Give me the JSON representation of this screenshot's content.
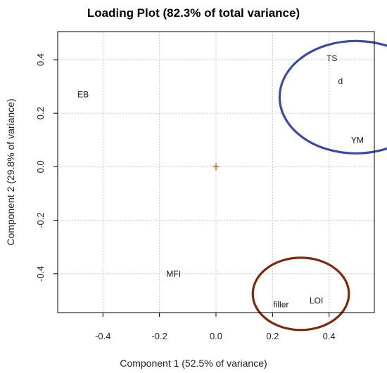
{
  "chart_data": {
    "type": "scatter",
    "title": "Loading Plot (82.3% of total variance)",
    "xlabel": "Component 1 (52.5% of variance)",
    "ylabel": "Component 2 (29.8% of variance)",
    "xlim": [
      -0.56,
      0.56
    ],
    "ylim": [
      -0.545,
      0.505
    ],
    "xticks": [
      -0.4,
      -0.2,
      0.0,
      0.2,
      0.4
    ],
    "xtick_labels": [
      "-0.4",
      "-0.2",
      "0.0",
      "0.2",
      "0.4"
    ],
    "yticks": [
      -0.4,
      -0.2,
      0.0,
      0.2,
      0.4
    ],
    "ytick_labels": [
      "-0.4",
      "-0.2",
      "0.0",
      "0.2",
      "0.4"
    ],
    "grid": true,
    "points": [
      {
        "label": "EB",
        "x": -0.47,
        "y": 0.27
      },
      {
        "label": "TS",
        "x": 0.41,
        "y": 0.405
      },
      {
        "label": "d",
        "x": 0.44,
        "y": 0.32
      },
      {
        "label": "YM",
        "x": 0.5,
        "y": 0.1
      },
      {
        "label": "MFI",
        "x": -0.15,
        "y": -0.4
      },
      {
        "label": "filler",
        "x": 0.23,
        "y": -0.515
      },
      {
        "label": "LOI",
        "x": 0.355,
        "y": -0.5
      }
    ],
    "origin_marker": {
      "x": 0.0,
      "y": 0.0,
      "color": "#b5651d"
    },
    "highlight_ellipses": [
      {
        "cx": 0.495,
        "cy": 0.26,
        "rx": 0.27,
        "ry": 0.21,
        "color": "#3f4b9a"
      },
      {
        "cx": 0.3,
        "cy": -0.475,
        "rx": 0.17,
        "ry": 0.135,
        "color": "#7a2a0e"
      }
    ]
  }
}
